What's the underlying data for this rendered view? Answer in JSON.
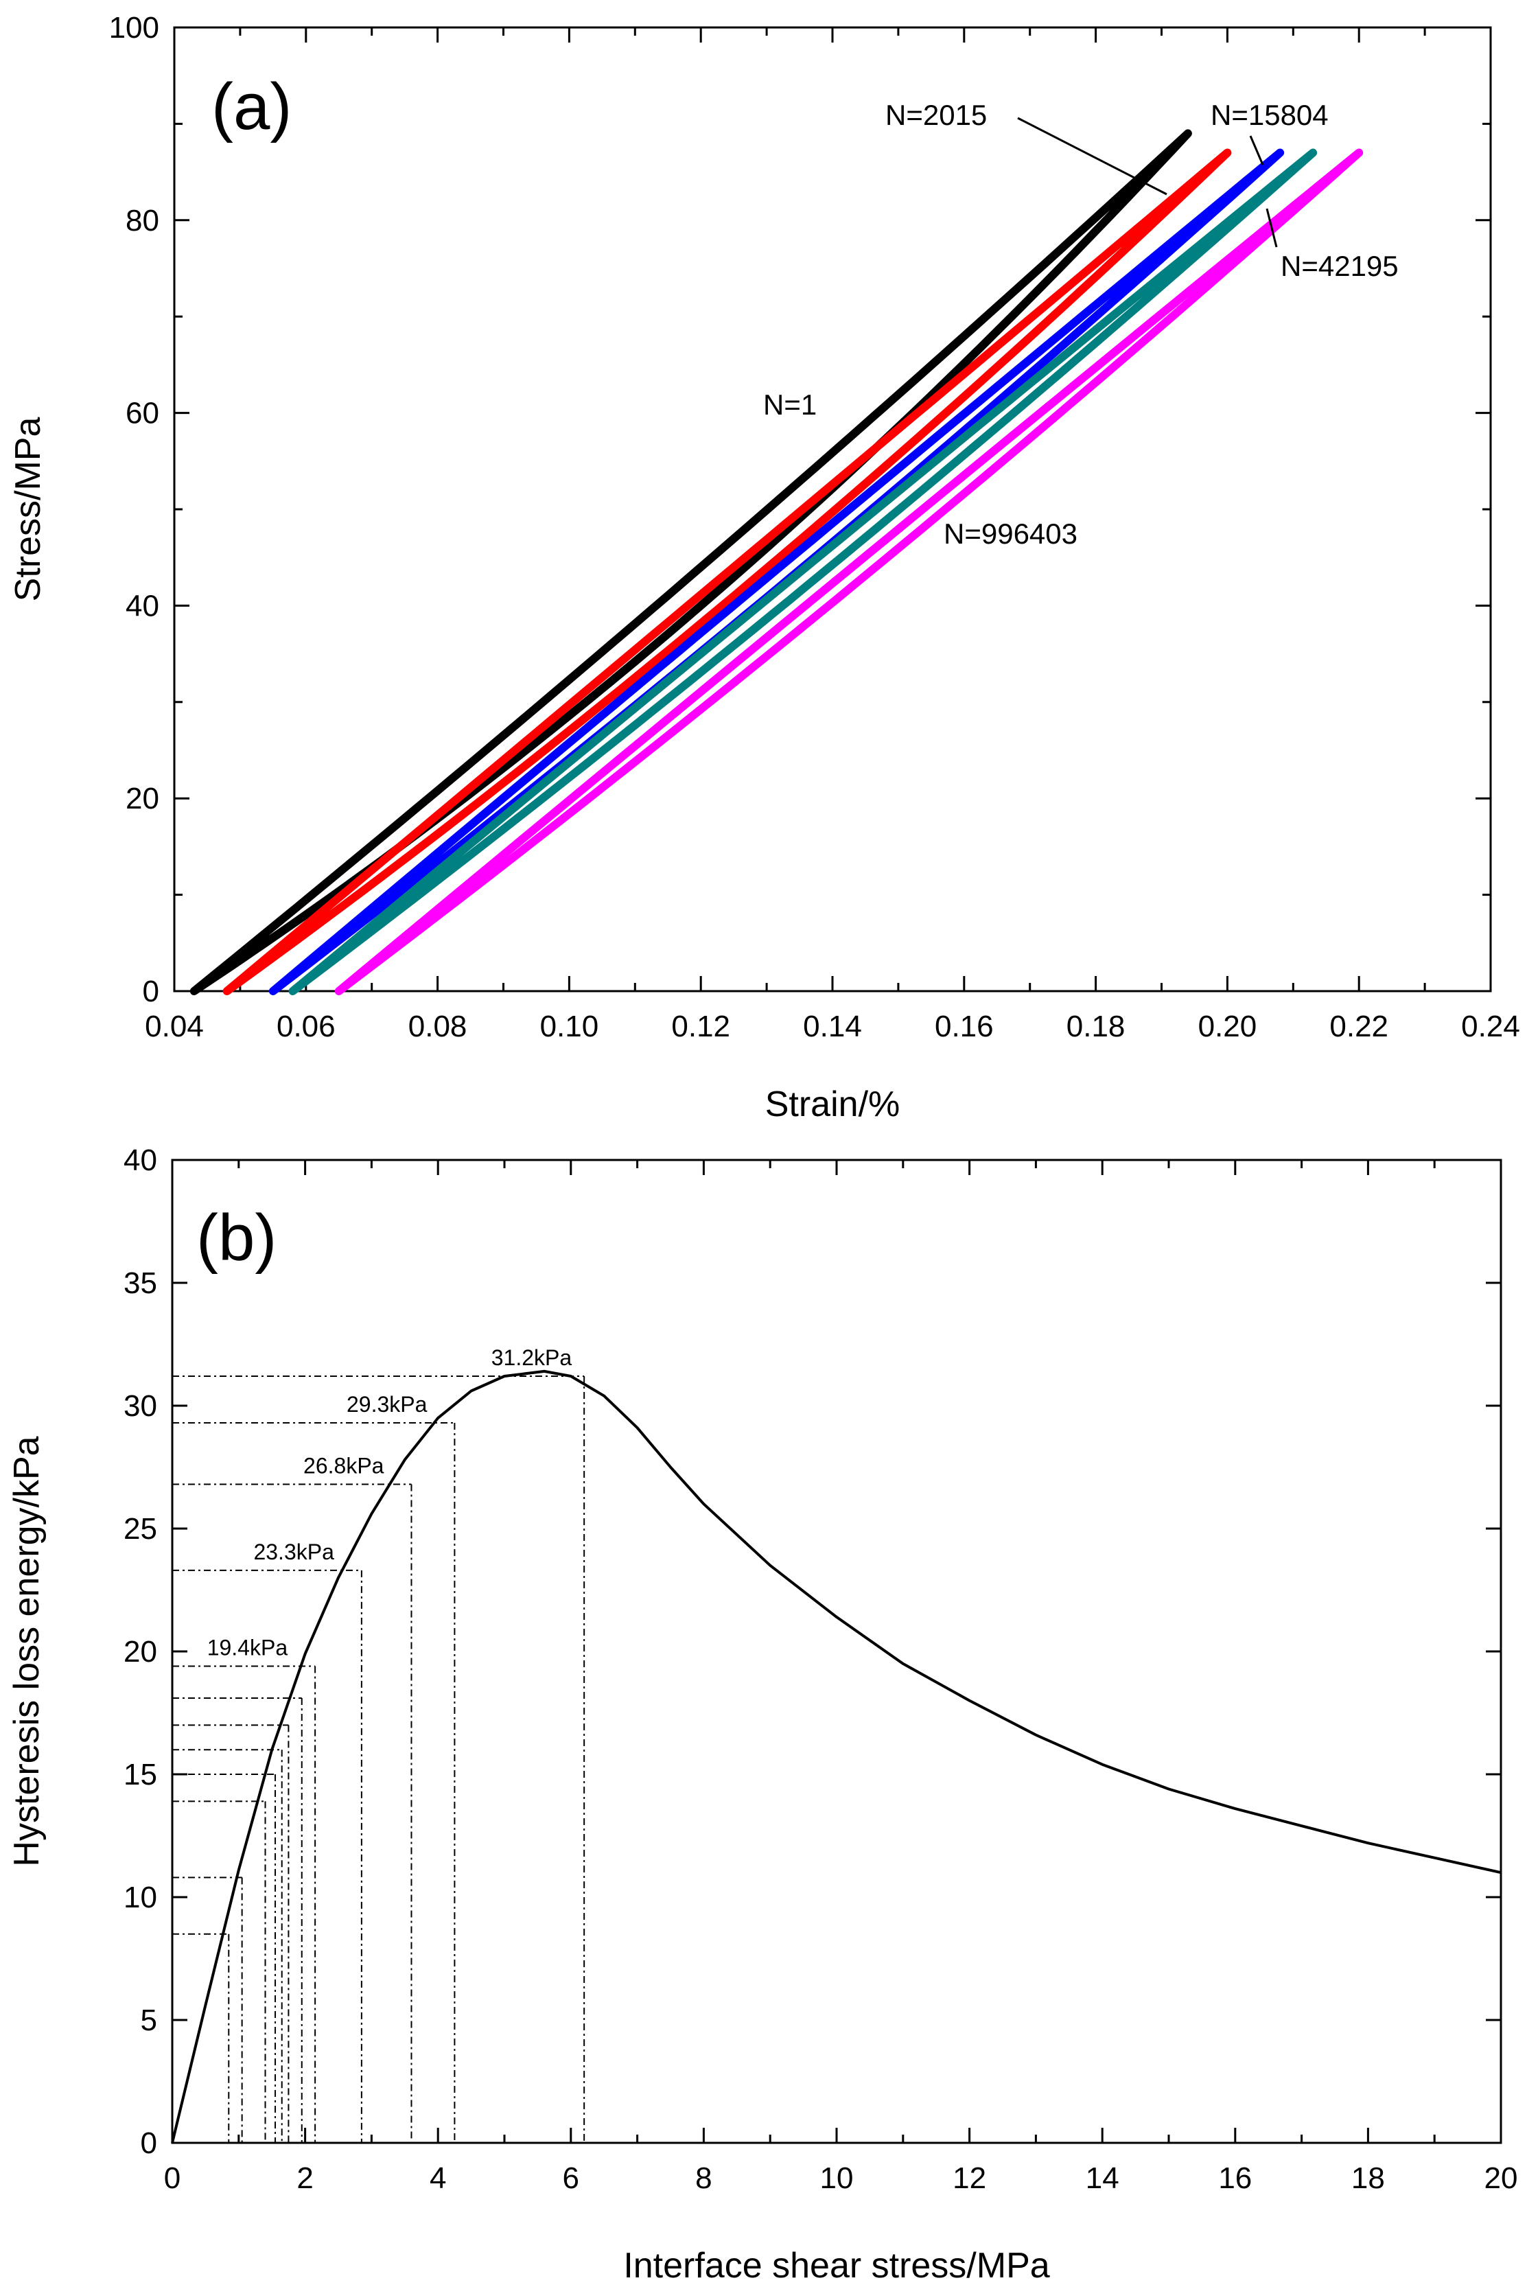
{
  "chart_data": [
    {
      "id": "a",
      "type": "line",
      "panel_label": "(a)",
      "xlabel": "Strain/%",
      "ylabel": "Stress/MPa",
      "xlim": [
        0.04,
        0.24
      ],
      "ylim": [
        0,
        100
      ],
      "xticks": [
        "0.04",
        "0.06",
        "0.08",
        "0.10",
        "0.12",
        "0.14",
        "0.16",
        "0.18",
        "0.20",
        "0.22",
        "0.24"
      ],
      "yticks": [
        "0",
        "20",
        "40",
        "60",
        "80",
        "100"
      ],
      "series": [
        {
          "name": "N=1",
          "color": "#000000",
          "loop": {
            "start": [
              0.043,
              0
            ],
            "top": [
              0.194,
              89
            ],
            "loading_mid": [
              0.12,
              44
            ],
            "unloading_mid": [
              0.12,
              40
            ]
          }
        },
        {
          "name": "N=2015",
          "color": "#ff0000",
          "loop": {
            "start": [
              0.048,
              0
            ],
            "top": [
              0.2,
              87
            ],
            "loading_mid": [
              0.125,
              44
            ],
            "unloading_mid": [
              0.125,
              41
            ]
          }
        },
        {
          "name": "N=15804",
          "color": "#0000ff",
          "loop": {
            "start": [
              0.055,
              0
            ],
            "top": [
              0.208,
              87
            ],
            "loading_mid": [
              0.132,
              44
            ],
            "unloading_mid": [
              0.132,
              42
            ]
          }
        },
        {
          "name": "N=42195",
          "color": "#008080",
          "loop": {
            "start": [
              0.058,
              0
            ],
            "top": [
              0.213,
              87
            ],
            "loading_mid": [
              0.136,
              44
            ],
            "unloading_mid": [
              0.136,
              42
            ]
          }
        },
        {
          "name": "N=996403",
          "color": "#ff00ff",
          "loop": {
            "start": [
              0.065,
              0
            ],
            "top": [
              0.22,
              87
            ],
            "loading_mid": [
              0.143,
              44
            ],
            "unloading_mid": [
              0.143,
              42
            ]
          }
        }
      ],
      "annotations": [
        {
          "text": "N=2015",
          "points_to": "N=2015"
        },
        {
          "text": "N=15804",
          "points_to": "N=15804"
        },
        {
          "text": "N=42195",
          "points_to": "N=42195"
        },
        {
          "text": "N=1",
          "points_to": "N=1"
        },
        {
          "text": "N=996403",
          "points_to": "N=996403"
        }
      ]
    },
    {
      "id": "b",
      "type": "line",
      "panel_label": "(b)",
      "xlabel": "Interface shear stress/MPa",
      "ylabel": "Hysteresis loss energy/kPa",
      "xlim": [
        0,
        20
      ],
      "ylim": [
        0,
        40
      ],
      "xticks": [
        "0",
        "2",
        "4",
        "6",
        "8",
        "10",
        "12",
        "14",
        "16",
        "18",
        "20"
      ],
      "yticks": [
        "0",
        "5",
        "10",
        "15",
        "20",
        "25",
        "30",
        "35",
        "40"
      ],
      "series": [
        {
          "name": "Hysteresis loss energy",
          "color": "#000000",
          "x": [
            0,
            0.5,
            1,
            1.5,
            2,
            2.5,
            3,
            3.5,
            4,
            4.5,
            5,
            5.6,
            6,
            6.5,
            7,
            7.5,
            8,
            9,
            10,
            11,
            12,
            13,
            14,
            15,
            16,
            17,
            18,
            19,
            20
          ],
          "y": [
            0,
            5.6,
            11.1,
            16.0,
            19.9,
            23.0,
            25.6,
            27.8,
            29.5,
            30.6,
            31.2,
            31.4,
            31.2,
            30.4,
            29.1,
            27.5,
            26.0,
            23.5,
            21.4,
            19.5,
            18.0,
            16.6,
            15.4,
            14.4,
            13.6,
            12.9,
            12.2,
            11.6,
            11.0
          ]
        }
      ],
      "reference_points": [
        {
          "x": 0.85,
          "y": 8.5,
          "label": ""
        },
        {
          "x": 1.05,
          "y": 10.8,
          "label": ""
        },
        {
          "x": 1.4,
          "y": 13.9,
          "label": ""
        },
        {
          "x": 1.55,
          "y": 15.0,
          "label": ""
        },
        {
          "x": 1.65,
          "y": 16.0,
          "label": ""
        },
        {
          "x": 1.75,
          "y": 17.0,
          "label": ""
        },
        {
          "x": 1.95,
          "y": 18.1,
          "label": ""
        },
        {
          "x": 2.15,
          "y": 19.4,
          "label": "19.4kPa"
        },
        {
          "x": 2.85,
          "y": 23.3,
          "label": "23.3kPa"
        },
        {
          "x": 3.6,
          "y": 26.8,
          "label": "26.8kPa"
        },
        {
          "x": 4.25,
          "y": 29.3,
          "label": "29.3kPa"
        },
        {
          "x": 6.2,
          "y": 31.2,
          "label": "31.2kPa"
        }
      ]
    }
  ]
}
